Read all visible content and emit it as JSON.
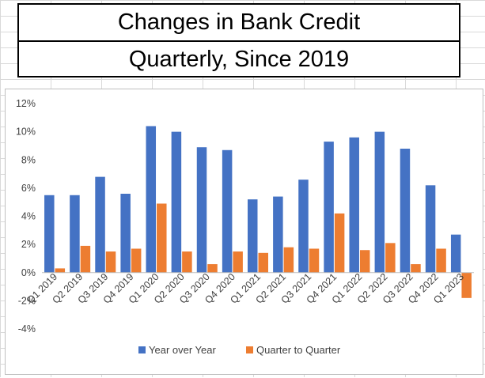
{
  "header": {
    "title": "Changes in Bank Credit",
    "subtitle": "Quarterly, Since 2019"
  },
  "chart_data": {
    "type": "bar",
    "categories": [
      "Q1 2019",
      "Q2 2019",
      "Q3 2019",
      "Q4 2019",
      "Q1 2020",
      "Q2 2020",
      "Q3 2020",
      "Q4 2020",
      "Q1 2021",
      "Q2 2021",
      "Q3 2021",
      "Q4 2021",
      "Q1 2022",
      "Q2 2022",
      "Q3 2022",
      "Q4 2022",
      "Q1 2023"
    ],
    "series": [
      {
        "name": "Year over Year",
        "color": "#4472c4",
        "values": [
          5.5,
          5.5,
          6.8,
          5.6,
          10.4,
          10.0,
          8.9,
          8.7,
          5.2,
          5.4,
          6.6,
          9.3,
          9.6,
          10.0,
          8.8,
          6.2,
          2.7
        ]
      },
      {
        "name": "Quarter to Quarter",
        "color": "#ed7d31",
        "values": [
          0.3,
          1.9,
          1.5,
          1.7,
          4.9,
          1.5,
          0.6,
          1.5,
          1.4,
          1.8,
          1.7,
          4.2,
          1.6,
          2.1,
          0.6,
          1.7,
          -1.8
        ]
      }
    ],
    "ylim": [
      -4,
      12
    ],
    "yticks": [
      -4,
      -2,
      0,
      2,
      4,
      6,
      8,
      10,
      12
    ],
    "ytick_format": "percent",
    "grid": false,
    "legend": "bottom"
  }
}
